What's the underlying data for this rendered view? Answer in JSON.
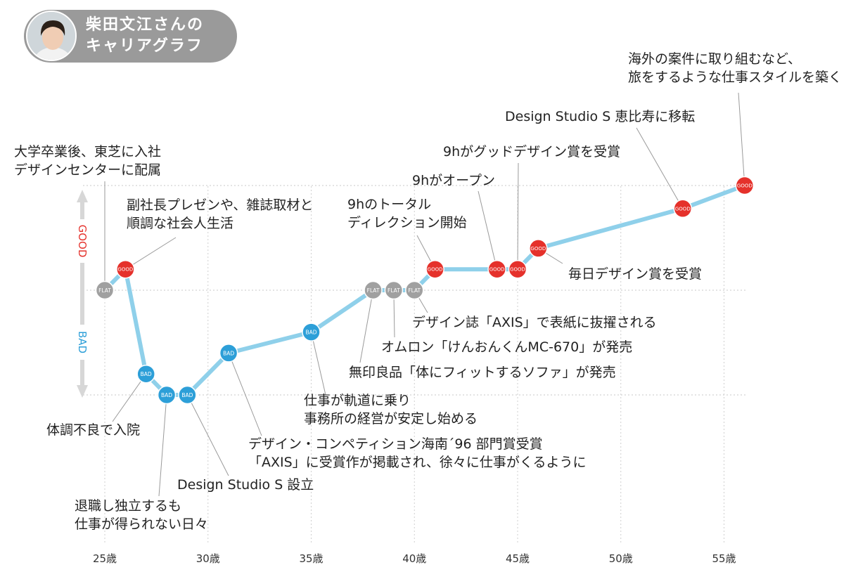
{
  "header": {
    "title_line1": "柴田文江さんの",
    "title_line2": "キャリアグラフ"
  },
  "chart_data": {
    "type": "line",
    "title": "柴田文江さんのキャリアグラフ",
    "y_axis_labels": {
      "good": "GOOD",
      "bad": "BAD"
    },
    "y_levels": {
      "GOOD": 1,
      "FLAT": 0,
      "BAD": -1
    },
    "xlim": [
      25,
      56
    ],
    "ylim": [
      -1,
      1
    ],
    "x_ticks": [
      25,
      30,
      35,
      40,
      45,
      50,
      55
    ],
    "x_tick_labels": [
      "25歳",
      "30歳",
      "35歳",
      "40歳",
      "45歳",
      "50歳",
      "55歳"
    ],
    "line_color": "#8fd0ea",
    "status_colors": {
      "GOOD": "#e5312b",
      "FLAT": "#a0a0a0",
      "BAD": "#2d9fd8"
    },
    "points": [
      {
        "x": 25,
        "y": 0,
        "label": "FLAT"
      },
      {
        "x": 26,
        "y": 0.2,
        "label": "GOOD"
      },
      {
        "x": 27,
        "y": -0.8,
        "label": "BAD"
      },
      {
        "x": 28,
        "y": -1,
        "label": "BAD"
      },
      {
        "x": 29,
        "y": -1,
        "label": "BAD"
      },
      {
        "x": 31,
        "y": -0.6,
        "label": "BAD"
      },
      {
        "x": 35,
        "y": -0.4,
        "label": "BAD"
      },
      {
        "x": 38,
        "y": 0,
        "label": "FLAT"
      },
      {
        "x": 39,
        "y": 0,
        "label": "FLAT"
      },
      {
        "x": 40,
        "y": 0,
        "label": "FLAT"
      },
      {
        "x": 41,
        "y": 0.2,
        "label": "GOOD"
      },
      {
        "x": 44,
        "y": 0.2,
        "label": "GOOD"
      },
      {
        "x": 45,
        "y": 0.2,
        "label": "GOOD"
      },
      {
        "x": 46,
        "y": 0.4,
        "label": "GOOD"
      },
      {
        "x": 53,
        "y": 0.78,
        "label": "GOOD"
      },
      {
        "x": 56,
        "y": 1,
        "label": "GOOD"
      }
    ],
    "annotations": [
      {
        "point": 0,
        "lines": [
          "大学卒業後、東芝に入社",
          "デザインセンターに配属"
        ]
      },
      {
        "point": 1,
        "lines": [
          "副社長プレゼンや、雑誌取材と",
          "順調な社会人生活"
        ]
      },
      {
        "point": 2,
        "lines": [
          "体調不良で入院"
        ]
      },
      {
        "point": 3,
        "lines": [
          "退職し独立するも",
          "仕事が得られない日々"
        ]
      },
      {
        "point": 4,
        "lines": [
          "Design Studio S 設立"
        ]
      },
      {
        "point": 5,
        "lines": [
          "デザイン・コンペティション海南´96 部門賞受賞",
          "「AXIS」に受賞作が掲載され、徐々に仕事がくるように"
        ]
      },
      {
        "point": 6,
        "lines": [
          "仕事が軌道に乗り",
          "事務所の経営が安定し始める"
        ]
      },
      {
        "point": 7,
        "lines": [
          "無印良品「体にフィットするソファ」が発売"
        ]
      },
      {
        "point": 8,
        "lines": [
          "オムロン「けんおんくんMC-670」が発売"
        ]
      },
      {
        "point": 9,
        "lines": [
          "デザイン誌「AXIS」で表紙に抜擢される"
        ]
      },
      {
        "point": 10,
        "lines": [
          "9hのトータル",
          "ディレクション開始"
        ]
      },
      {
        "point": 11,
        "lines": [
          "9hがオープン"
        ]
      },
      {
        "point": 12,
        "lines": [
          "9hがグッドデザイン賞を受賞"
        ]
      },
      {
        "point": 13,
        "lines": [
          "毎日デザイン賞を受賞"
        ]
      },
      {
        "point": 14,
        "lines": [
          "Design Studio S 恵比寿に移転"
        ]
      },
      {
        "point": 15,
        "lines": [
          "海外の案件に取り組むなど、",
          "旅をするような仕事スタイルを築く"
        ]
      }
    ]
  }
}
